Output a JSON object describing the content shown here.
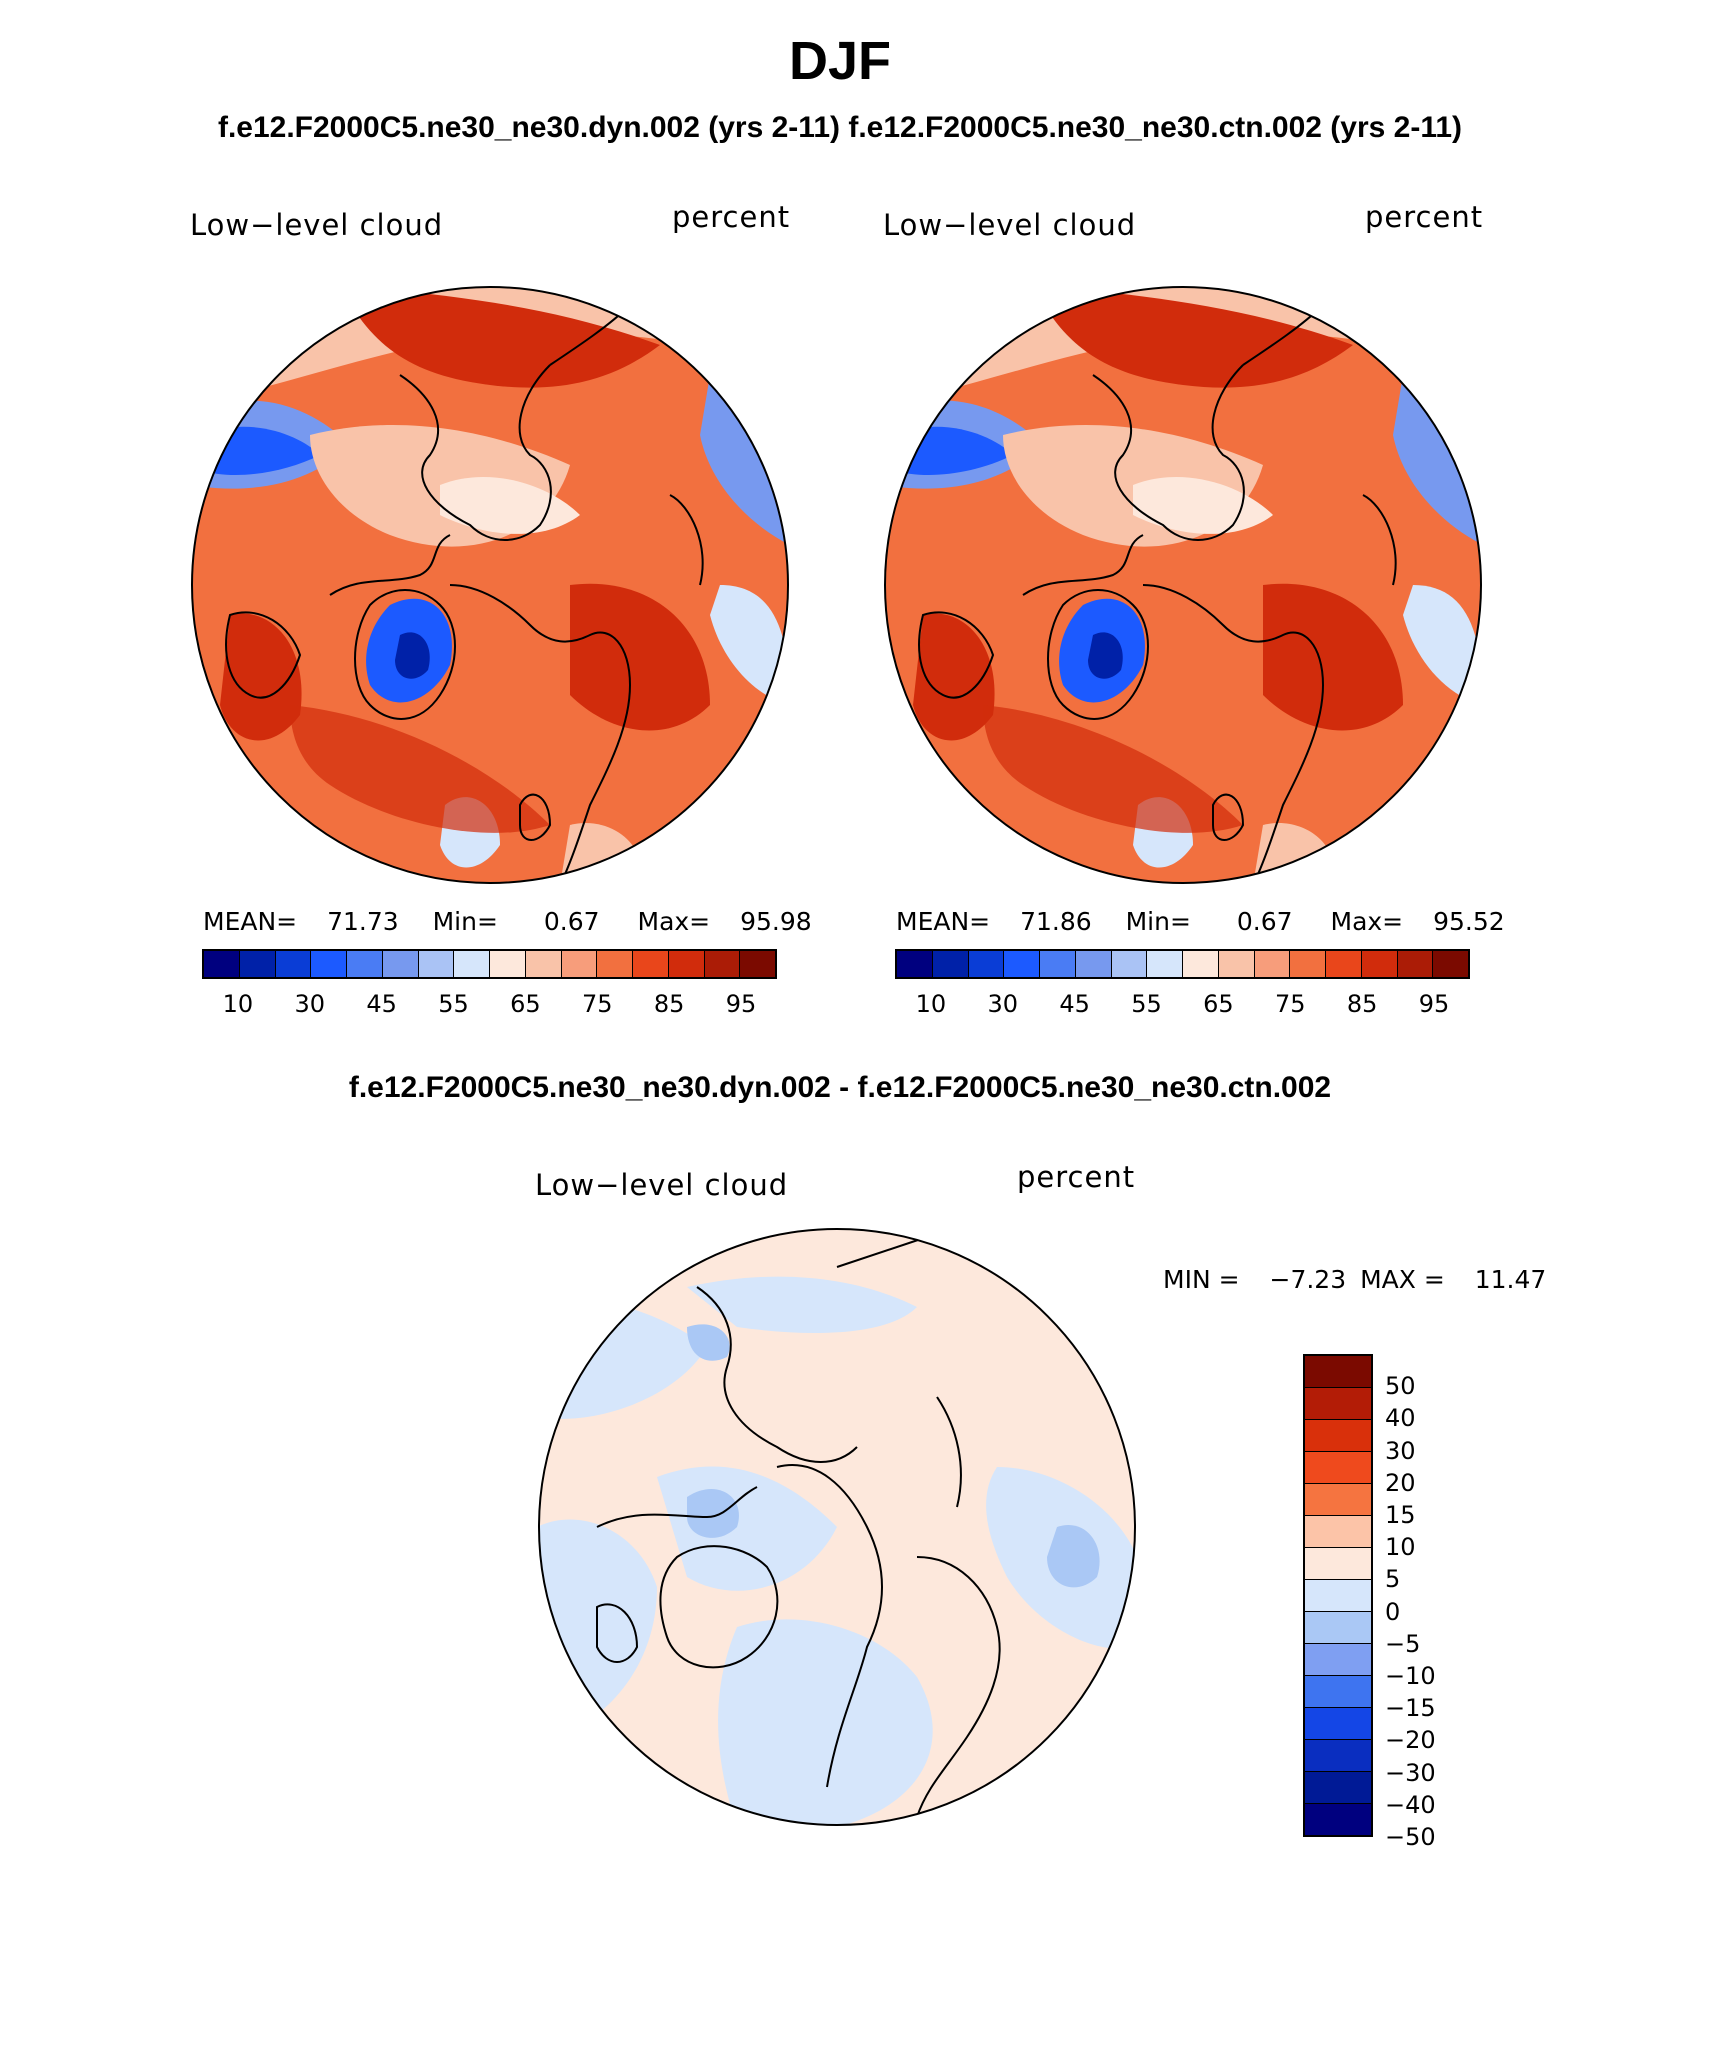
{
  "figure": {
    "title": "DJF",
    "subtitle": "f.e12.F2000C5.ne30_ne30.dyn.002 (yrs 2-11)  f.e12.F2000C5.ne30_ne30.ctn.002 (yrs 2-11)",
    "diff_title": "f.e12.F2000C5.ne30_ne30.dyn.002 - f.e12.F2000C5.ne30_ne30.ctn.002"
  },
  "panels": [
    {
      "variable": "Low−level cloud",
      "units": "percent",
      "mean_label": "MEAN=",
      "mean": "71.73",
      "min_label": "Min=",
      "min": "0.67",
      "max_label": "Max=",
      "max": "95.98"
    },
    {
      "variable": "Low−level cloud",
      "units": "percent",
      "mean_label": "MEAN=",
      "mean": "71.86",
      "min_label": "Min=",
      "min": "0.67",
      "max_label": "Max=",
      "max": "95.52"
    }
  ],
  "abs_colorbar": {
    "colors": [
      "#00007f",
      "#0021a8",
      "#0a3dd6",
      "#1c5aff",
      "#4a7cf4",
      "#7799ef",
      "#aac3f5",
      "#d6e6fb",
      "#fde8dc",
      "#f9c3a9",
      "#f79d7b",
      "#f2703f",
      "#e9461b",
      "#d12c0c",
      "#ab1c06",
      "#7b0a00"
    ],
    "tick_labels": [
      "10",
      "30",
      "45",
      "55",
      "65",
      "75",
      "85",
      "95"
    ]
  },
  "diff_panel": {
    "variable": "Low−level cloud",
    "units": "percent",
    "min_label": "MIN =",
    "min": "−7.23",
    "max_label": "MAX =",
    "max": "11.47"
  },
  "diff_colorbar": {
    "colors": [
      "#7b0a00",
      "#b31c06",
      "#d9300b",
      "#ef4a1d",
      "#f57440",
      "#fcc4a8",
      "#fde8dc",
      "#d6e6fb",
      "#aac8f5",
      "#7f9ff2",
      "#3e74f0",
      "#1446e6",
      "#0a2ec0",
      "#001a96",
      "#00007f"
    ],
    "tick_labels": [
      "50",
      "40",
      "30",
      "20",
      "15",
      "10",
      "5",
      "0",
      "−5",
      "−10",
      "−15",
      "−20",
      "−30",
      "−40",
      "−50"
    ]
  },
  "map_palette": {
    "ocean_warm": "#f2703f",
    "deep_red": "#d12c0c",
    "light_orange": "#f9c3a9",
    "pale": "#fde8dc",
    "light_blue": "#d6e6fb",
    "mid_blue": "#7799ef",
    "deep_blue": "#1c5aff",
    "darkest_blue": "#0021a8",
    "diff_pos": "#fde8dc",
    "diff_neg": "#d6e6fb",
    "diff_neg2": "#aac8f5"
  }
}
